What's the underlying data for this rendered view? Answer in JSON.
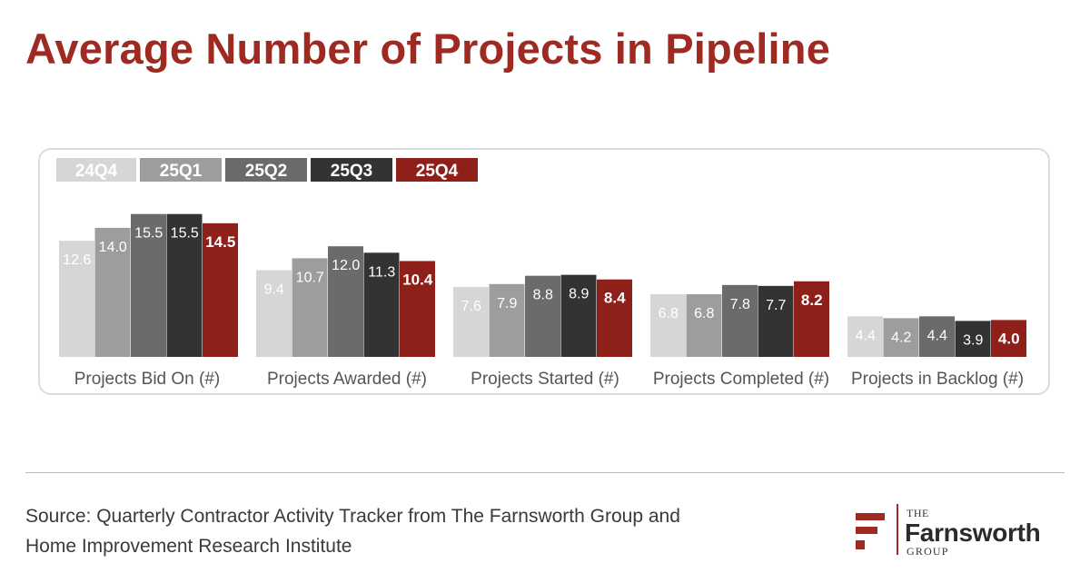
{
  "title": "Average Number of Projects in Pipeline",
  "source": {
    "line1": "Source: Quarterly Contractor Activity Tracker from The Farnsworth Group and",
    "line2": "Home Improvement Research Institute"
  },
  "logo": {
    "the": "THE",
    "name": "Farnsworth",
    "group": "GROUP",
    "color": "#9e2a22"
  },
  "chart_data": {
    "type": "bar",
    "title": "Average Number of Projects in Pipeline",
    "xlabel": "",
    "ylabel": "",
    "ylim": [
      0,
      16
    ],
    "grid": false,
    "legend_position": "top-left",
    "categories": [
      "Projects Bid On (#)",
      "Projects Awarded (#)",
      "Projects Started (#)",
      "Projects Completed (#)",
      "Projects in Backlog (#)"
    ],
    "series": [
      {
        "name": "24Q4",
        "color": "#d6d6d6",
        "values": [
          12.6,
          9.4,
          7.6,
          6.8,
          4.4
        ]
      },
      {
        "name": "25Q1",
        "color": "#9d9d9d",
        "values": [
          14.0,
          10.7,
          7.9,
          6.8,
          4.2
        ]
      },
      {
        "name": "25Q2",
        "color": "#6b6b6b",
        "values": [
          15.5,
          12.0,
          8.8,
          7.8,
          4.4
        ]
      },
      {
        "name": "25Q3",
        "color": "#333333",
        "values": [
          15.5,
          11.3,
          8.9,
          7.7,
          3.9
        ]
      },
      {
        "name": "25Q4",
        "color": "#8e1f19",
        "values": [
          14.5,
          10.4,
          8.4,
          8.2,
          4.0
        ]
      }
    ],
    "label_texts": [
      [
        "12.6",
        "9.4",
        "7.6",
        "6.8",
        "4.4"
      ],
      [
        "14.0",
        "10.7",
        "7.9",
        "6.8",
        "4.2"
      ],
      [
        "15.5",
        "12.0",
        "8.8",
        "7.8",
        "4.4"
      ],
      [
        "15.5",
        "11.3",
        "8.9",
        "7.7",
        "3.9"
      ],
      [
        "14.5",
        "10.4",
        "8.4",
        "8.2",
        "4.0"
      ]
    ]
  }
}
